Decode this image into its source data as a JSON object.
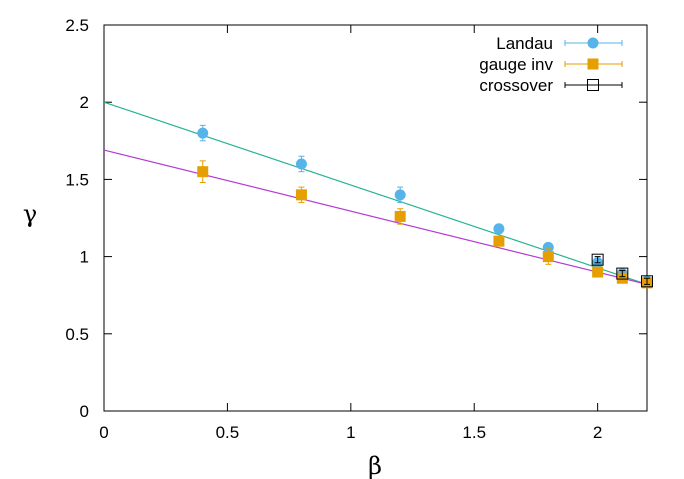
{
  "chart_data": {
    "type": "scatter",
    "xlabel": "β",
    "ylabel": "γ",
    "xlim": [
      0,
      2.2
    ],
    "ylim": [
      0,
      2.5
    ],
    "xticks": [
      "0",
      "0.5",
      "1",
      "1.5",
      "2"
    ],
    "yticks": [
      "0",
      "0.5",
      "1",
      "1.5",
      "2",
      "2.5"
    ],
    "grid": false,
    "legend_position": "top-right",
    "series": [
      {
        "name": "Landau",
        "color": "#56b4e9",
        "marker": "circle-filled",
        "x": [
          0.4,
          0.8,
          1.2,
          1.6,
          1.8,
          2.0,
          2.1,
          2.2
        ],
        "y": [
          1.8,
          1.6,
          1.4,
          1.18,
          1.06,
          0.96,
          0.89,
          0.84
        ],
        "yerr": [
          0.05,
          0.05,
          0.05,
          0.02,
          0.02,
          0.03,
          0.02,
          0.02
        ],
        "fit_line": {
          "color": "#26b392",
          "x": [
            0,
            2.2
          ],
          "y": [
            2.0,
            0.82
          ]
        }
      },
      {
        "name": "gauge inv",
        "color": "#e69f00",
        "marker": "square-filled",
        "x": [
          0.4,
          0.8,
          1.2,
          1.6,
          1.8,
          2.0,
          2.1,
          2.2
        ],
        "y": [
          1.55,
          1.4,
          1.26,
          1.1,
          1.0,
          0.9,
          0.86,
          0.83
        ],
        "yerr": [
          0.07,
          0.05,
          0.05,
          0.02,
          0.05,
          0.02,
          0.02,
          0.02
        ],
        "fit_line": {
          "color": "#b43cd2",
          "x": [
            0,
            2.2
          ],
          "y": [
            1.69,
            0.82
          ]
        }
      },
      {
        "name": "crossover",
        "color": "#000000",
        "marker": "square-open",
        "x": [
          2.0,
          2.1,
          2.2
        ],
        "y": [
          0.98,
          0.89,
          0.84
        ],
        "yerr": [
          0.02,
          0.02,
          0.02
        ]
      }
    ]
  }
}
